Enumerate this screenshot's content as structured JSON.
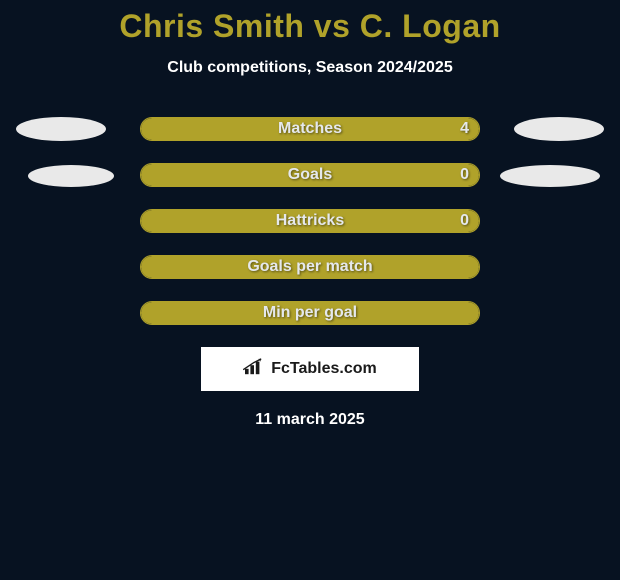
{
  "header": {
    "title": "Chris Smith vs C. Logan",
    "subtitle": "Club competitions, Season 2024/2025"
  },
  "colors": {
    "accent": "#b0a22a",
    "background": "#071221",
    "text_light": "#ffffff",
    "bar_text": "#e5e8ec",
    "ellipse": "#e9e9e9",
    "brand_bg": "#ffffff",
    "brand_text": "#1a1a1a"
  },
  "stats": {
    "rows": [
      {
        "label": "Matches",
        "value": "4",
        "fill_pct": 100,
        "left_ellipse": true,
        "right_ellipse": true,
        "ellipse_class": ""
      },
      {
        "label": "Goals",
        "value": "0",
        "fill_pct": 100,
        "left_ellipse": true,
        "right_ellipse": true,
        "ellipse_class": "row2"
      },
      {
        "label": "Hattricks",
        "value": "0",
        "fill_pct": 100,
        "left_ellipse": false,
        "right_ellipse": false,
        "ellipse_class": ""
      },
      {
        "label": "Goals per match",
        "value": "",
        "fill_pct": 100,
        "left_ellipse": false,
        "right_ellipse": false,
        "ellipse_class": ""
      },
      {
        "label": "Min per goal",
        "value": "",
        "fill_pct": 100,
        "left_ellipse": false,
        "right_ellipse": false,
        "ellipse_class": ""
      }
    ]
  },
  "brand": {
    "text": "FcTables.com"
  },
  "footer": {
    "date": "11 march 2025"
  }
}
